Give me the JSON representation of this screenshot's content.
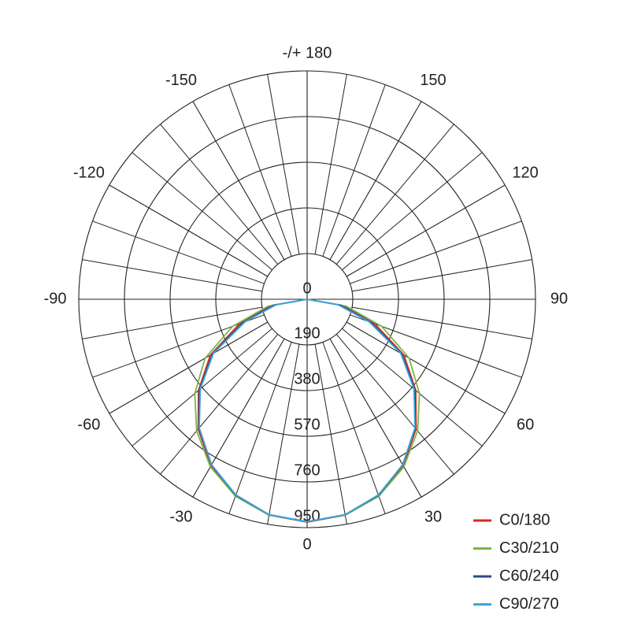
{
  "chart_data": {
    "type": "polar",
    "theta": [
      -90,
      -80,
      -70,
      -60,
      -50,
      -40,
      -30,
      -20,
      -10,
      0,
      10,
      20,
      30,
      40,
      50,
      60,
      70,
      80,
      90
    ],
    "series": [
      {
        "name": "C0/180",
        "color": "#d42a20",
        "values": [
          0,
          150,
          300,
          465,
          590,
          705,
          800,
          870,
          912,
          927,
          912,
          870,
          800,
          705,
          590,
          465,
          300,
          150,
          0
        ]
      },
      {
        "name": "C30/210",
        "color": "#7ab648",
        "values": [
          0,
          165,
          330,
          490,
          610,
          715,
          805,
          872,
          912,
          925,
          912,
          872,
          805,
          715,
          610,
          490,
          330,
          165,
          0
        ]
      },
      {
        "name": "C60/240",
        "color": "#2e4a8a",
        "values": [
          0,
          140,
          285,
          455,
          585,
          700,
          795,
          868,
          910,
          926,
          910,
          868,
          795,
          700,
          585,
          455,
          285,
          140,
          0
        ]
      },
      {
        "name": "C90/270",
        "color": "#3aa6dd",
        "values": [
          0,
          130,
          275,
          450,
          580,
          698,
          795,
          866,
          910,
          925,
          910,
          866,
          795,
          698,
          580,
          450,
          275,
          130,
          0
        ]
      }
    ],
    "rlim": [
      0,
      950
    ],
    "rticks": [
      0,
      190,
      380,
      570,
      760,
      950
    ],
    "thetaticks": [
      -150,
      -120,
      -90,
      -60,
      -30,
      0,
      30,
      60,
      90,
      120,
      150,
      {
        "value": 180,
        "label": "-/+ 180"
      }
    ]
  }
}
